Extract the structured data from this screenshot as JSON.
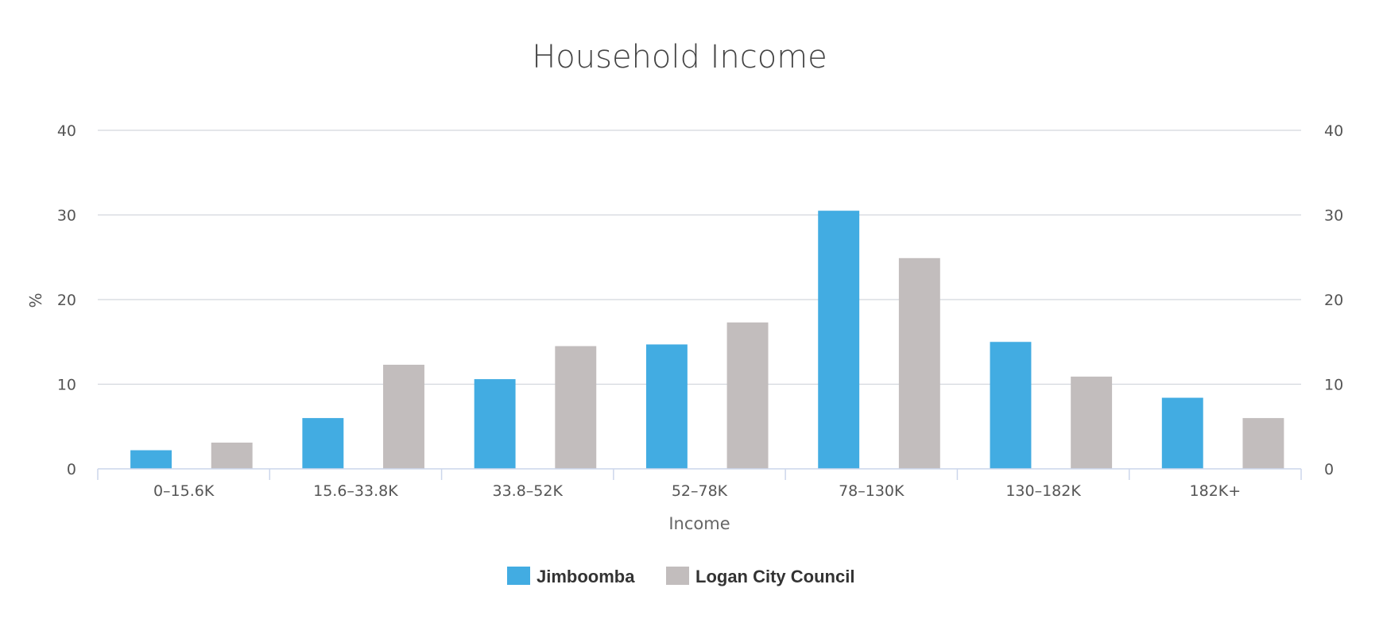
{
  "colors": {
    "series_1": "#42ace2",
    "series_2": "#c2bdbd",
    "grid": "#d3d7dd",
    "axis": "#ccd6eb",
    "text": "#555555",
    "title": "#444444",
    "legend_text": "#333333"
  },
  "chart_data": {
    "type": "bar",
    "title": "Household Income",
    "xlabel": "Income",
    "ylabel": "%",
    "ylim": [
      0,
      40
    ],
    "yticks": [
      0,
      10,
      20,
      30,
      40
    ],
    "grid": true,
    "legend_position": "bottom-center",
    "categories": [
      "0–15.6K",
      "15.6–33.8K",
      "33.8–52K",
      "52–78K",
      "78–130K",
      "130–182K",
      "182K+"
    ],
    "series": [
      {
        "name": "Jimboomba",
        "values": [
          2.2,
          6.0,
          10.6,
          14.7,
          30.5,
          15.0,
          8.4
        ]
      },
      {
        "name": "Logan City Council",
        "values": [
          3.1,
          12.3,
          14.5,
          17.3,
          24.9,
          10.9,
          6.0
        ]
      }
    ]
  }
}
